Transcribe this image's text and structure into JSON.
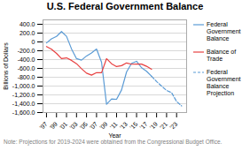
{
  "chart_data": {
    "type": "line",
    "title": "U.S. Federal Government Balance",
    "xlabel": "Year",
    "ylabel": "Billions of Dollars",
    "caption": "Note: Projections for 2019-2024 were obtained from the Congressional Budget Office.",
    "series": [
      {
        "name": "Federal\nGovernment\nBalance",
        "color": "#5b9bd5",
        "line_style": "solid",
        "x": [
          1997,
          1998,
          1999,
          2000,
          2001,
          2002,
          2003,
          2004,
          2005,
          2006,
          2007,
          2008,
          2009,
          2010,
          2011,
          2012,
          2013,
          2014,
          2015,
          2016,
          2017,
          2018
        ],
        "values": [
          -22,
          69,
          126,
          236,
          128,
          -158,
          -378,
          -413,
          -318,
          -248,
          -161,
          -459,
          -1413,
          -1294,
          -1300,
          -1087,
          -680,
          -485,
          -439,
          -585,
          -665,
          -779
        ]
      },
      {
        "name": "Balance of\nTrade",
        "color": "#e84040",
        "line_style": "solid",
        "x": [
          1997,
          1998,
          1999,
          2000,
          2001,
          2002,
          2003,
          2004,
          2005,
          2006,
          2007,
          2008,
          2009,
          2010,
          2011,
          2012,
          2013,
          2014,
          2015,
          2016,
          2017,
          2018
        ],
        "values": [
          -105,
          -164,
          -260,
          -378,
          -361,
          -418,
          -494,
          -607,
          -708,
          -753,
          -696,
          -698,
          -379,
          -494,
          -558,
          -537,
          -476,
          -505,
          -500,
          -502,
          -552,
          -621
        ]
      },
      {
        "name": "Federal\nGovernment\nBalance\nProjection",
        "color": "#5b9bd5",
        "line_style": "dashed",
        "x": [
          2018,
          2019,
          2020,
          2021,
          2022,
          2023,
          2024
        ],
        "values": [
          -779,
          -897,
          -1000,
          -1100,
          -1150,
          -1350,
          -1450
        ]
      }
    ],
    "xlim": [
      1996.3,
      2025.0
    ],
    "xticks": [
      {
        "value": 1997,
        "label": "'97"
      },
      {
        "value": 1999,
        "label": "'99"
      },
      {
        "value": 2001,
        "label": "'01"
      },
      {
        "value": 2003,
        "label": "'03"
      },
      {
        "value": 2005,
        "label": "'05"
      },
      {
        "value": 2007,
        "label": "'07"
      },
      {
        "value": 2009,
        "label": "'09"
      },
      {
        "value": 2011,
        "label": "'11"
      },
      {
        "value": 2013,
        "label": "'13"
      },
      {
        "value": 2015,
        "label": "'15"
      },
      {
        "value": 2017,
        "label": "'17"
      },
      {
        "value": 2019,
        "label": "'19"
      },
      {
        "value": 2021,
        "label": "'21"
      },
      {
        "value": 2023,
        "label": "'23"
      }
    ],
    "ylim": [
      -1600,
      500
    ],
    "yticks": [
      {
        "value": 400,
        "label": "400.0"
      },
      {
        "value": 200,
        "label": "200.0"
      },
      0,
      {
        "value": -200,
        "label": "-200.0"
      },
      {
        "value": -400,
        "label": "-400.0"
      },
      {
        "value": -600,
        "label": "-600.0"
      },
      {
        "value": -800,
        "label": "-800.0"
      },
      {
        "value": -1000,
        "label": "-1,000.0"
      },
      {
        "value": -1200,
        "label": "-1,200.0"
      },
      {
        "value": -1400,
        "label": "-1,400.0"
      },
      {
        "value": -1600,
        "label": "-1,600.0"
      }
    ],
    "grid": "y",
    "legend": "right"
  }
}
